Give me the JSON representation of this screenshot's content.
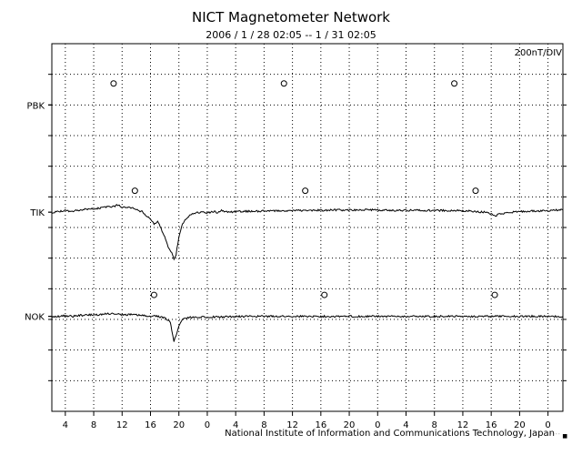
{
  "header": {
    "title": "NICT Magnetometer Network",
    "subtitle": "2006 / 1 / 28   02:05 --  1 / 31   02:05",
    "scale": "200nT/DIV"
  },
  "footer": {
    "credit": "National Institute of Information and Communications Technology, Japan",
    "mark": "˙˙˙˙ ■"
  },
  "chart_data": {
    "type": "line",
    "title": "NICT Magnetometer Network",
    "time_range": "2006 / 1 / 28   02:05 --  1 / 31   02:05",
    "scale": "200nT/DIV",
    "x_unit": "hours since 1/28 00:00",
    "xlim": [
      2.1,
      74.1
    ],
    "x_ticks": [
      4,
      8,
      12,
      16,
      20,
      24,
      28,
      32,
      36,
      40,
      44,
      48,
      52,
      56,
      60,
      64,
      68,
      72
    ],
    "x_tick_labels": [
      "4",
      "8",
      "12",
      "16",
      "20",
      "0",
      "4",
      "8",
      "12",
      "16",
      "20",
      "0",
      "4",
      "8",
      "12",
      "16",
      "20",
      "0"
    ],
    "y_unit": "divisions of 200 nT (0 = top grid line)",
    "ylim": [
      0,
      12
    ],
    "grid": true,
    "series": [
      {
        "name": "PBK",
        "baseline": 2.0,
        "local_midnight_markers": [
          10.8,
          34.8,
          58.8
        ],
        "marker_y": 1.3,
        "points": []
      },
      {
        "name": "TIK",
        "baseline": 5.5,
        "local_midnight_markers": [
          13.8,
          37.8,
          61.8
        ],
        "marker_y": 4.8,
        "points": [
          [
            2.1,
            5.52
          ],
          [
            3,
            5.48
          ],
          [
            4,
            5.45
          ],
          [
            5,
            5.47
          ],
          [
            6,
            5.43
          ],
          [
            7,
            5.4
          ],
          [
            8,
            5.38
          ],
          [
            9,
            5.36
          ],
          [
            10,
            5.33
          ],
          [
            11,
            5.3
          ],
          [
            11.5,
            5.25
          ],
          [
            12,
            5.35
          ],
          [
            13,
            5.33
          ],
          [
            14,
            5.42
          ],
          [
            14.8,
            5.48
          ],
          [
            15.3,
            5.6
          ],
          [
            16,
            5.7
          ],
          [
            16.5,
            5.9
          ],
          [
            17,
            5.8
          ],
          [
            17.5,
            6.05
          ],
          [
            18,
            6.3
          ],
          [
            18.5,
            6.65
          ],
          [
            19,
            6.8
          ],
          [
            19.3,
            7.05
          ],
          [
            19.6,
            6.9
          ],
          [
            20,
            6.3
          ],
          [
            20.5,
            5.9
          ],
          [
            21,
            5.7
          ],
          [
            21.5,
            5.62
          ],
          [
            22,
            5.55
          ],
          [
            23,
            5.5
          ],
          [
            24,
            5.52
          ],
          [
            25,
            5.48
          ],
          [
            25.5,
            5.52
          ],
          [
            26,
            5.45
          ],
          [
            27,
            5.5
          ],
          [
            28,
            5.48
          ],
          [
            30,
            5.47
          ],
          [
            32,
            5.46
          ],
          [
            34,
            5.45
          ],
          [
            36,
            5.45
          ],
          [
            38,
            5.44
          ],
          [
            40,
            5.44
          ],
          [
            42,
            5.43
          ],
          [
            44,
            5.43
          ],
          [
            46,
            5.42
          ],
          [
            48,
            5.43
          ],
          [
            50,
            5.44
          ],
          [
            52,
            5.44
          ],
          [
            54,
            5.44
          ],
          [
            56,
            5.44
          ],
          [
            58,
            5.45
          ],
          [
            60,
            5.45
          ],
          [
            61,
            5.46
          ],
          [
            62,
            5.48
          ],
          [
            63,
            5.5
          ],
          [
            64,
            5.55
          ],
          [
            64.5,
            5.62
          ],
          [
            65,
            5.58
          ],
          [
            66,
            5.52
          ],
          [
            67,
            5.5
          ],
          [
            68,
            5.48
          ],
          [
            70,
            5.46
          ],
          [
            72,
            5.45
          ],
          [
            74.1,
            5.42
          ]
        ]
      },
      {
        "name": "NOK",
        "baseline": 8.9,
        "local_midnight_markers": [
          16.5,
          40.5,
          64.5
        ],
        "marker_y": 8.2,
        "points": [
          [
            2.1,
            8.92
          ],
          [
            3,
            8.9
          ],
          [
            4,
            8.88
          ],
          [
            5,
            8.9
          ],
          [
            6,
            8.87
          ],
          [
            7,
            8.86
          ],
          [
            8,
            8.85
          ],
          [
            9,
            8.84
          ],
          [
            10,
            8.82
          ],
          [
            11,
            8.8
          ],
          [
            12,
            8.85
          ],
          [
            13,
            8.84
          ],
          [
            14,
            8.86
          ],
          [
            15,
            8.88
          ],
          [
            16,
            8.88
          ],
          [
            17,
            8.9
          ],
          [
            18,
            8.95
          ],
          [
            18.8,
            9.1
          ],
          [
            19,
            9.35
          ],
          [
            19.3,
            9.7
          ],
          [
            19.6,
            9.55
          ],
          [
            20,
            9.2
          ],
          [
            20.5,
            9.0
          ],
          [
            21,
            8.95
          ],
          [
            22,
            8.93
          ],
          [
            23,
            8.92
          ],
          [
            24,
            8.92
          ],
          [
            26,
            8.92
          ],
          [
            28,
            8.91
          ],
          [
            30,
            8.9
          ],
          [
            32,
            8.9
          ],
          [
            34,
            8.9
          ],
          [
            36,
            8.9
          ],
          [
            38,
            8.9
          ],
          [
            40,
            8.9
          ],
          [
            42,
            8.9
          ],
          [
            44,
            8.9
          ],
          [
            46,
            8.9
          ],
          [
            48,
            8.9
          ],
          [
            50,
            8.9
          ],
          [
            52,
            8.9
          ],
          [
            54,
            8.9
          ],
          [
            56,
            8.9
          ],
          [
            58,
            8.9
          ],
          [
            60,
            8.9
          ],
          [
            62,
            8.9
          ],
          [
            64,
            8.9
          ],
          [
            66,
            8.9
          ],
          [
            68,
            8.9
          ],
          [
            70,
            8.9
          ],
          [
            72,
            8.9
          ],
          [
            74.1,
            8.9
          ]
        ]
      }
    ]
  }
}
